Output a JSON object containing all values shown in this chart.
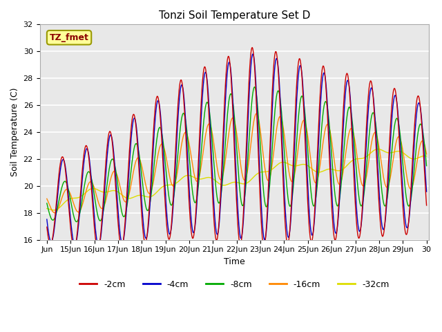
{
  "title": "Tonzi Soil Temperature Set D",
  "xlabel": "Time",
  "ylabel": "Soil Temperature (C)",
  "ylim": [
    16,
    32
  ],
  "background_color": "#e8e8e8",
  "plot_bg_color": "#e8e8e8",
  "grid_color": "white",
  "legend_label": "TZ_fmet",
  "legend_bg": "#ffff99",
  "legend_border": "#999900",
  "series_labels": [
    "-2cm",
    "-4cm",
    "-8cm",
    "-16cm",
    "-32cm"
  ],
  "series_colors": [
    "#cc0000",
    "#0000cc",
    "#00aa00",
    "#ff8800",
    "#dddd00"
  ],
  "line_width": 1.0,
  "xtick_labels": [
    "Jun",
    "15Jun",
    "16Jun",
    "17Jun",
    "18Jun",
    "19Jun",
    "20Jun",
    "21Jun",
    "22Jun",
    "23Jun",
    "24Jun",
    "25Jun",
    "26Jun",
    "27Jun",
    "28Jun",
    "29Jun",
    "30"
  ],
  "ytick_values": [
    16,
    18,
    20,
    22,
    24,
    26,
    28,
    30,
    32
  ],
  "xlabel_fontsize": 9,
  "ylabel_fontsize": 9,
  "tick_fontsize": 8,
  "title_fontsize": 11
}
